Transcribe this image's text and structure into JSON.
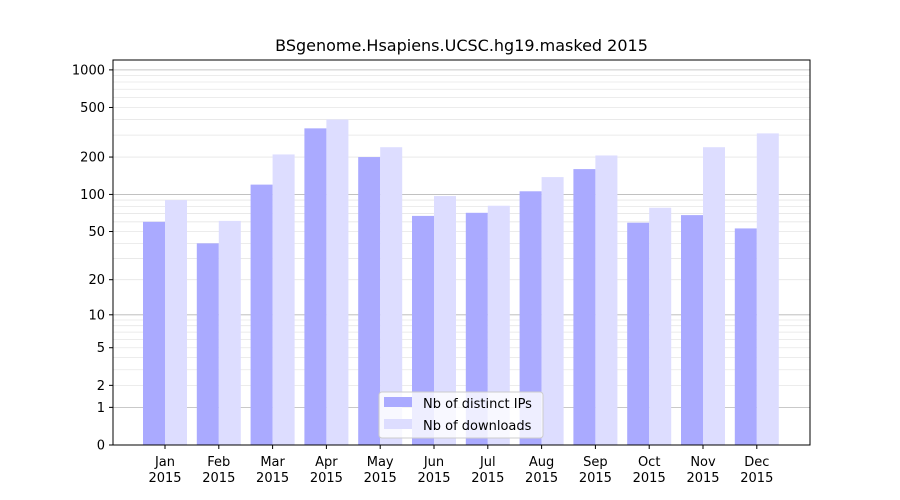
{
  "chart_data": {
    "type": "bar",
    "title": "BSgenome.Hsapiens.UCSC.hg19.masked 2015",
    "xlabel": "",
    "ylabel": "",
    "yscale": "log(1+y)",
    "ylim": [
      0,
      1200
    ],
    "grid": true,
    "legend_position": "lower-center",
    "categories": [
      [
        "Jan",
        "2015"
      ],
      [
        "Feb",
        "2015"
      ],
      [
        "Mar",
        "2015"
      ],
      [
        "Apr",
        "2015"
      ],
      [
        "May",
        "2015"
      ],
      [
        "Jun",
        "2015"
      ],
      [
        "Jul",
        "2015"
      ],
      [
        "Aug",
        "2015"
      ],
      [
        "Sep",
        "2015"
      ],
      [
        "Oct",
        "2015"
      ],
      [
        "Nov",
        "2015"
      ],
      [
        "Dec",
        "2015"
      ]
    ],
    "yticks": [
      0,
      1,
      2,
      5,
      10,
      20,
      50,
      100,
      200,
      500,
      1000
    ],
    "ytick_labels": [
      "0",
      "1",
      "2",
      "5",
      "10",
      "20",
      "50",
      "100",
      "200",
      "500",
      "1000"
    ],
    "series": [
      {
        "name": "Nb of distinct IPs",
        "color": "#aaaaff",
        "values": [
          60,
          40,
          120,
          340,
          200,
          67,
          71,
          106,
          160,
          59,
          68,
          53
        ]
      },
      {
        "name": "Nb of downloads",
        "color": "#ddddff",
        "values": [
          90,
          61,
          210,
          400,
          240,
          97,
          81,
          138,
          206,
          78,
          240,
          310
        ]
      }
    ]
  }
}
